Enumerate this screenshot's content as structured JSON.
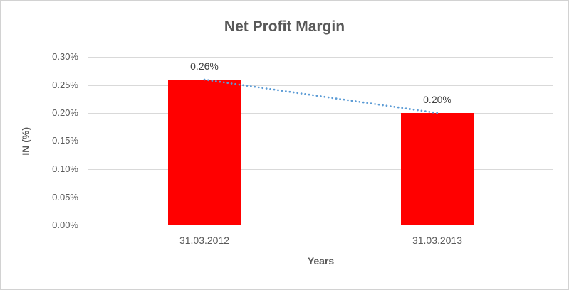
{
  "chart_data": {
    "type": "bar",
    "title": "Net Profit Margin",
    "categories": [
      "31.03.2012",
      "31.03.2013"
    ],
    "values": [
      0.26,
      0.2
    ],
    "data_labels": [
      "0.26%",
      "0.20%"
    ],
    "xlabel": "Years",
    "ylabel": "IN (%)",
    "unit": "%",
    "ylim": [
      0,
      0.3
    ],
    "ytick_step": 0.05,
    "ytick_labels": [
      "0.00%",
      "0.05%",
      "0.10%",
      "0.15%",
      "0.20%",
      "0.25%",
      "0.30%"
    ],
    "grid": true,
    "legend": "none",
    "bar_color": "#ff0000",
    "trendline": {
      "type": "linear",
      "style": "dotted",
      "color": "#5b9bd5",
      "connects": "bar tops"
    }
  },
  "colors": {
    "title_text": "#595959",
    "tick_text": "#595959",
    "data_label_text": "#404040",
    "axis_title_text": "#595959",
    "gridline": "#d9d9d9",
    "frame_border": "#d2d2d2",
    "background": "#ffffff"
  }
}
